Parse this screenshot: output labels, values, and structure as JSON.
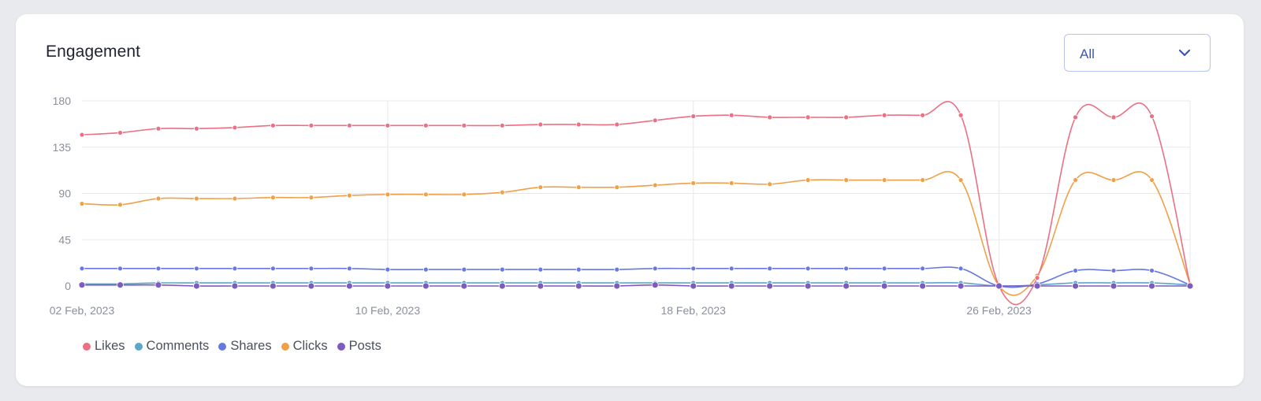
{
  "card": {
    "title": "Engagement"
  },
  "filter": {
    "selected": "All",
    "icon": "chevron-down-icon"
  },
  "colors": {
    "Likes": "#ec6f84",
    "Comments": "#5aa7c9",
    "Shares": "#6779e0",
    "Clicks": "#f0a047",
    "Posts": "#7c5cbf"
  },
  "chart_data": {
    "type": "line",
    "ylim": [
      0,
      180
    ],
    "yticks": [
      "0",
      "45",
      "90",
      "135",
      "180"
    ],
    "xtick_labels": [
      "02 Feb, 2023",
      "10 Feb, 2023",
      "18 Feb, 2023",
      "26 Feb, 2023"
    ],
    "grid": true,
    "legend_position": "bottom-left",
    "x": [
      "2023-02-02",
      "2023-02-03",
      "2023-02-04",
      "2023-02-05",
      "2023-02-06",
      "2023-02-07",
      "2023-02-08",
      "2023-02-09",
      "2023-02-10",
      "2023-02-11",
      "2023-02-12",
      "2023-02-13",
      "2023-02-14",
      "2023-02-15",
      "2023-02-16",
      "2023-02-17",
      "2023-02-18",
      "2023-02-19",
      "2023-02-20",
      "2023-02-21",
      "2023-02-22",
      "2023-02-23",
      "2023-02-24",
      "2023-02-25",
      "2023-02-26",
      "2023-02-27",
      "2023-02-28",
      "2023-03-01",
      "2023-03-02",
      "2023-03-03"
    ],
    "series": [
      {
        "name": "Likes",
        "values": [
          147,
          149,
          153,
          153,
          154,
          156,
          156,
          156,
          156,
          156,
          156,
          156,
          157,
          157,
          157,
          161,
          165,
          166,
          164,
          164,
          164,
          166,
          166,
          166,
          0,
          8,
          164,
          164,
          165,
          1
        ]
      },
      {
        "name": "Comments",
        "values": [
          2,
          2,
          3,
          3,
          3,
          3,
          3,
          3,
          3,
          3,
          3,
          3,
          3,
          3,
          3,
          3,
          3,
          3,
          3,
          3,
          3,
          3,
          3,
          3,
          0,
          1,
          3,
          3,
          3,
          1
        ]
      },
      {
        "name": "Shares",
        "values": [
          17,
          17,
          17,
          17,
          17,
          17,
          17,
          17,
          16,
          16,
          16,
          16,
          16,
          16,
          16,
          17,
          17,
          17,
          17,
          17,
          17,
          17,
          17,
          17,
          0,
          2,
          15,
          15,
          15,
          1
        ]
      },
      {
        "name": "Clicks",
        "values": [
          80,
          79,
          85,
          85,
          85,
          86,
          86,
          88,
          89,
          89,
          89,
          91,
          96,
          96,
          96,
          98,
          100,
          100,
          99,
          103,
          103,
          103,
          103,
          103,
          0,
          10,
          103,
          103,
          103,
          2
        ]
      },
      {
        "name": "Posts",
        "values": [
          1,
          1,
          1,
          0,
          0,
          0,
          0,
          0,
          0,
          0,
          0,
          0,
          0,
          0,
          0,
          1,
          0,
          0,
          0,
          0,
          0,
          0,
          0,
          0,
          0,
          0,
          0,
          0,
          0,
          0
        ]
      }
    ]
  },
  "legend": {
    "items": [
      {
        "label": "Likes"
      },
      {
        "label": "Comments"
      },
      {
        "label": "Shares"
      },
      {
        "label": "Clicks"
      },
      {
        "label": "Posts"
      }
    ]
  }
}
